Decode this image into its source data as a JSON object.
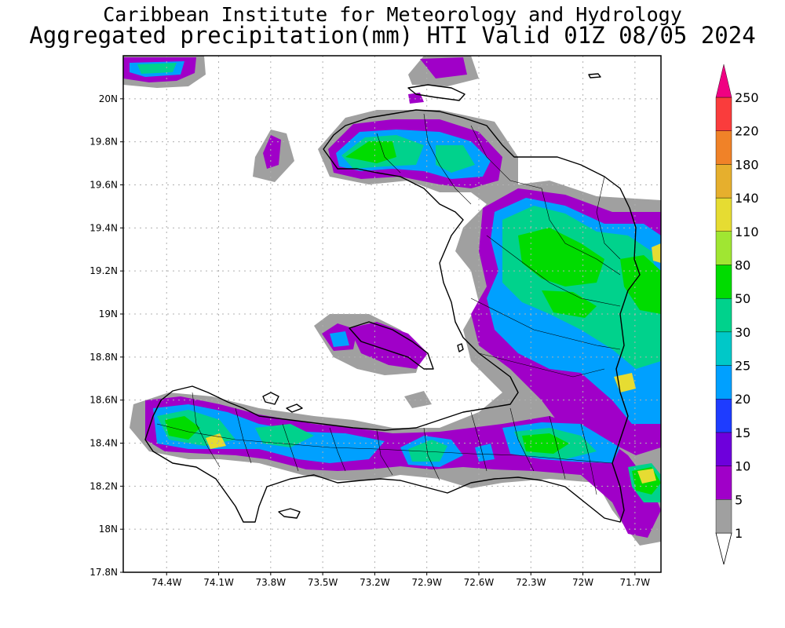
{
  "header": {
    "title": "Caribbean Institute for Meteorology and Hydrology",
    "subtitle": "Aggregated precipitation(mm) HTI Valid 01Z 08/05 2024"
  },
  "axes": {
    "lat_ticks": [
      "20N",
      "19.8N",
      "19.6N",
      "19.4N",
      "19.2N",
      "19N",
      "18.8N",
      "18.6N",
      "18.4N",
      "18.2N",
      "18N",
      "17.8N"
    ],
    "lon_ticks": [
      "74.4W",
      "74.1W",
      "73.8W",
      "73.5W",
      "73.2W",
      "72.9W",
      "72.6W",
      "72.3W",
      "72W",
      "71.7W"
    ],
    "lat_range": [
      17.8,
      20.2
    ],
    "lon_range": [
      -74.65,
      -71.55
    ],
    "grid": true
  },
  "colorbar": {
    "labels": [
      "1",
      "5",
      "10",
      "15",
      "20",
      "25",
      "30",
      "50",
      "80",
      "110",
      "140",
      "180",
      "220",
      "250"
    ],
    "colors": [
      "#a0a0a0",
      "#a000c8",
      "#6e00dc",
      "#1e3cff",
      "#00a0ff",
      "#00c8c8",
      "#00d28c",
      "#00dc00",
      "#a0e632",
      "#e6dc32",
      "#e6af2d",
      "#f08228",
      "#fa3c3c",
      "#f00082"
    ]
  }
}
